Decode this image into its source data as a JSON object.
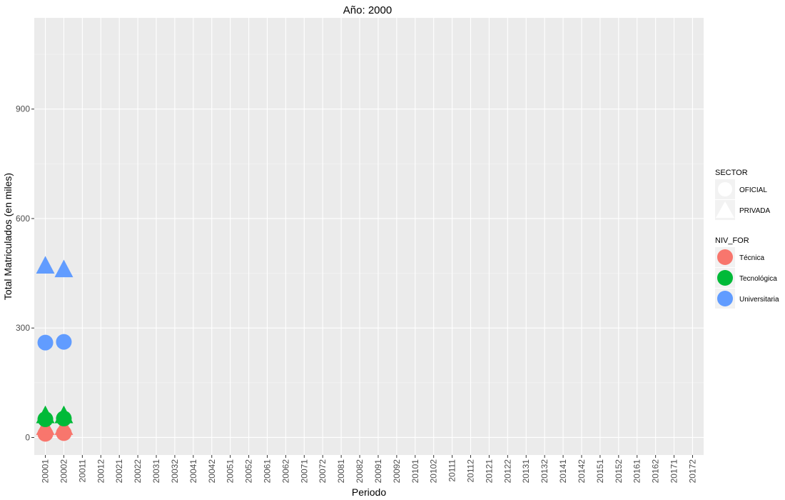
{
  "chart_data": {
    "type": "scatter",
    "title": "Año: 2000",
    "xlabel": "Periodo",
    "ylabel": "Total Matriculados (en miles)",
    "categories": [
      "20001",
      "20002",
      "20011",
      "20012",
      "20021",
      "20022",
      "20031",
      "20032",
      "20041",
      "20042",
      "20051",
      "20052",
      "20061",
      "20062",
      "20071",
      "20072",
      "20081",
      "20082",
      "20091",
      "20092",
      "20101",
      "20102",
      "20111",
      "20112",
      "20121",
      "20122",
      "20131",
      "20132",
      "20141",
      "20142",
      "20151",
      "20152",
      "20161",
      "20162",
      "20171",
      "20172"
    ],
    "yticks": [
      0,
      300,
      600,
      900
    ],
    "ylim": [
      -48,
      1150
    ],
    "grid": true,
    "legend_placement": "right",
    "legends": {
      "shape": {
        "title": "SECTOR",
        "entries": [
          {
            "label": "OFICIAL",
            "shape": "circle"
          },
          {
            "label": "PRIVADA",
            "shape": "triangle"
          }
        ]
      },
      "color": {
        "title": "NIV_FOR",
        "entries": [
          {
            "label": "Técnica",
            "color": "#F8766D"
          },
          {
            "label": "Tecnológica",
            "color": "#00BA38"
          },
          {
            "label": "Universitaria",
            "color": "#619CFF"
          }
        ]
      }
    },
    "series": [
      {
        "name": "Técnica",
        "sector": "OFICIAL",
        "shape": "circle",
        "color": "#F8766D",
        "points": [
          {
            "x": "20001",
            "y": 10
          },
          {
            "x": "20002",
            "y": 12
          }
        ]
      },
      {
        "name": "Técnica",
        "sector": "PRIVADA",
        "shape": "triangle",
        "color": "#F8766D",
        "points": [
          {
            "x": "20001",
            "y": 30
          },
          {
            "x": "20002",
            "y": 30
          }
        ]
      },
      {
        "name": "Tecnológica",
        "sector": "OFICIAL",
        "shape": "circle",
        "color": "#00BA38",
        "points": [
          {
            "x": "20001",
            "y": 50
          },
          {
            "x": "20002",
            "y": 52
          }
        ]
      },
      {
        "name": "Tecnológica",
        "sector": "PRIVADA",
        "shape": "triangle",
        "color": "#00BA38",
        "points": [
          {
            "x": "20001",
            "y": 62
          },
          {
            "x": "20002",
            "y": 62
          }
        ]
      },
      {
        "name": "Universitaria",
        "sector": "OFICIAL",
        "shape": "circle",
        "color": "#619CFF",
        "points": [
          {
            "x": "20001",
            "y": 260
          },
          {
            "x": "20002",
            "y": 262
          }
        ]
      },
      {
        "name": "Universitaria",
        "sector": "PRIVADA",
        "shape": "triangle",
        "color": "#619CFF",
        "points": [
          {
            "x": "20001",
            "y": 472
          },
          {
            "x": "20002",
            "y": 462
          }
        ]
      }
    ]
  }
}
